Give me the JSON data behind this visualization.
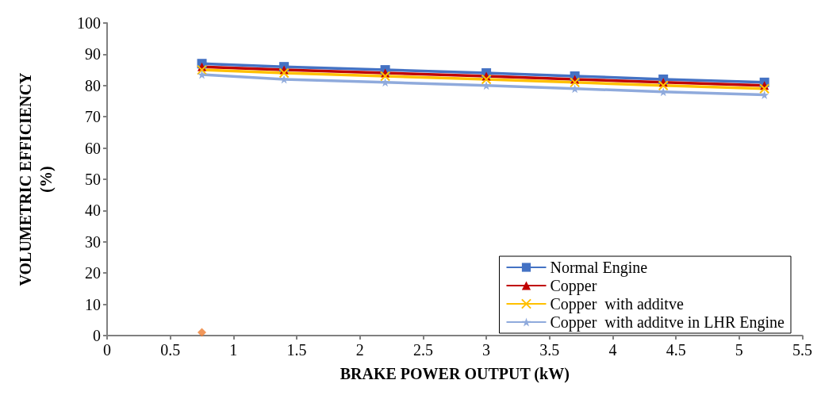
{
  "chart_data": {
    "type": "line",
    "xlabel": "BRAKE POWER OUTPUT (kW)",
    "ylabel": "VOLUMETRIC EFFICIENCY\n(%)",
    "x": [
      0.75,
      1.4,
      2.2,
      3,
      3.7,
      4.4,
      5.2
    ],
    "xlim": [
      0,
      5.5
    ],
    "xticks": [
      0,
      0.5,
      1,
      1.5,
      2,
      2.5,
      3,
      3.5,
      4,
      4.5,
      5,
      5.5
    ],
    "ylim": [
      0,
      100
    ],
    "yticks": [
      0,
      10,
      20,
      30,
      40,
      50,
      60,
      70,
      80,
      90,
      100
    ],
    "grid": false,
    "legend": "bottom right",
    "line_style": "solid",
    "series": [
      {
        "name": "Normal Engine",
        "color": "#4472c4",
        "marker": "square",
        "values": [
          87,
          86,
          85,
          84,
          83,
          82,
          81
        ]
      },
      {
        "name": "Copper",
        "color": "#c00000",
        "marker": "triangle",
        "values": [
          86,
          85,
          84,
          83,
          82,
          81,
          80
        ]
      },
      {
        "name": "Copper  with additve",
        "color": "#ffc000",
        "marker": "cross",
        "values": [
          85,
          84,
          83,
          82,
          81,
          80,
          79
        ]
      },
      {
        "name": "Copper  with additve in LHR Engine",
        "color": "#8faadc",
        "marker": "star",
        "values": [
          83.5,
          82,
          81,
          80,
          79,
          78,
          77
        ]
      },
      {
        "type": "scatter",
        "color": "#ed7d31",
        "marker": "diamond",
        "x": [
          0.75
        ],
        "values": [
          1
        ]
      }
    ]
  }
}
